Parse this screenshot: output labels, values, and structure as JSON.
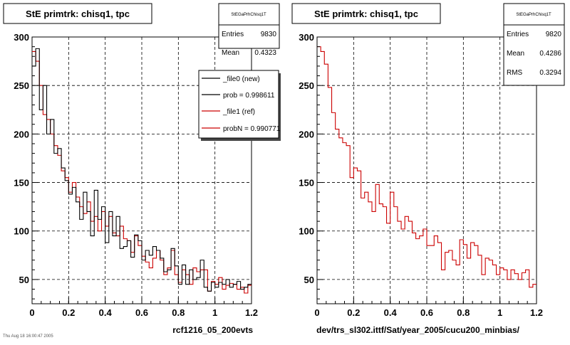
{
  "footer_text": "Thu Aug 18 16:00:47 2005",
  "chart_data": [
    {
      "type": "histogram",
      "title": "StE primtrk: chisq1, tpc",
      "xlabel": "rcf1216_05_200evts",
      "ylabel": "",
      "xlim": [
        0,
        1.2
      ],
      "ylim": [
        25,
        300
      ],
      "x_ticks": [
        "0",
        "0.2",
        "0.4",
        "0.6",
        "0.8",
        "1",
        "1.2"
      ],
      "y_ticks": [
        "50",
        "100",
        "150",
        "200",
        "250",
        "300"
      ],
      "grid": true,
      "stats": {
        "name": "StEGaPrhChisq1T",
        "entries_label": "Entries",
        "entries": "9830",
        "mean_label": "Mean",
        "mean": "0.4323"
      },
      "legend": [
        {
          "label": "_file0 (new)",
          "color": "#000000"
        },
        {
          "label": "prob = 0.998611",
          "color": "#000000"
        },
        {
          "label": "_file1 (ref)",
          "color": "#cc0000"
        },
        {
          "label": "probN = 0.990771",
          "color": "#cc0000"
        }
      ],
      "bin_width": 0.02,
      "series": [
        {
          "name": "_file0 (new)",
          "color": "#000000",
          "values": [
            270,
            288,
            225,
            250,
            200,
            215,
            180,
            185,
            165,
            152,
            138,
            145,
            130,
            112,
            140,
            120,
            95,
            142,
            112,
            125,
            88,
            120,
            95,
            115,
            82,
            84,
            90,
            73,
            96,
            90,
            70,
            80,
            75,
            84,
            80,
            72,
            58,
            60,
            82,
            64,
            45,
            65,
            45,
            60,
            50,
            52,
            70,
            42,
            38,
            47,
            42,
            47,
            45,
            50,
            42,
            45,
            48,
            40,
            42,
            45
          ]
        },
        {
          "name": "_file1 (ref)",
          "color": "#cc0000",
          "values": [
            285,
            275,
            250,
            220,
            215,
            200,
            188,
            178,
            162,
            155,
            140,
            150,
            135,
            125,
            118,
            130,
            110,
            115,
            100,
            120,
            105,
            115,
            98,
            95,
            105,
            92,
            90,
            78,
            95,
            85,
            74,
            68,
            62,
            72,
            80,
            70,
            55,
            62,
            80,
            55,
            47,
            60,
            55,
            45,
            62,
            58,
            60,
            60,
            38,
            48,
            45,
            52,
            40,
            44,
            46,
            45,
            40,
            42,
            36,
            44
          ]
        }
      ]
    },
    {
      "type": "histogram",
      "title": "StE primtrk: chisq1, tpc",
      "xlabel": "dev/trs_sl302.ittf/Sat/year_2005/cucu200_minbias/",
      "ylabel": "",
      "xlim": [
        0,
        1.2
      ],
      "ylim": [
        25,
        300
      ],
      "x_ticks": [
        "0",
        "0.2",
        "0.4",
        "0.6",
        "0.8",
        "1",
        "1.2"
      ],
      "y_ticks": [
        "50",
        "100",
        "150",
        "200",
        "250",
        "300"
      ],
      "grid": true,
      "stats": {
        "name": "StEGaPrhChisq1T",
        "entries_label": "Entries",
        "entries": "9820",
        "mean_label": "Mean",
        "mean": "0.4286",
        "rms_label": "RMS",
        "rms": "0.3294"
      },
      "bin_width": 0.02,
      "series": [
        {
          "name": "",
          "color": "#cc0000",
          "values": [
            290,
            285,
            272,
            248,
            222,
            205,
            196,
            191,
            188,
            155,
            165,
            162,
            134,
            140,
            130,
            120,
            148,
            128,
            125,
            108,
            140,
            125,
            110,
            102,
            115,
            110,
            98,
            92,
            95,
            102,
            85,
            85,
            95,
            88,
            60,
            78,
            80,
            70,
            65,
            91,
            86,
            72,
            88,
            85,
            75,
            55,
            72,
            70,
            65,
            55,
            62,
            60,
            50,
            60,
            56,
            50,
            57,
            60,
            42,
            45
          ]
        }
      ]
    }
  ]
}
